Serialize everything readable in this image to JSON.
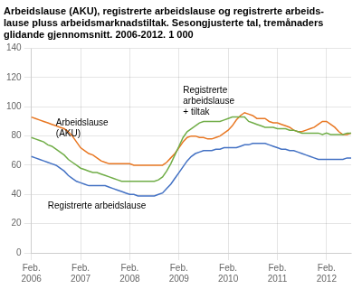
{
  "chart_data": {
    "type": "line",
    "title": "Arbeidslause (AKU), registrerte arbeidslause og registrerte arbeids-\nlause pluss arbeidsmarknadstiltak. Sesongjusterte tal, tremånaders\nglidande gjennomsnitt. 2006-2012. 1 000",
    "categories": [
      "Feb.\n2006",
      null,
      null,
      null,
      null,
      null,
      null,
      null,
      null,
      null,
      null,
      null,
      "Feb.\n2007",
      null,
      null,
      null,
      null,
      null,
      null,
      null,
      null,
      null,
      null,
      null,
      "Feb.\n2008",
      null,
      null,
      null,
      null,
      null,
      null,
      null,
      null,
      null,
      null,
      null,
      "Feb.\n2009",
      null,
      null,
      null,
      null,
      null,
      null,
      null,
      null,
      null,
      null,
      null,
      "Feb.\n2010",
      null,
      null,
      null,
      null,
      null,
      null,
      null,
      null,
      null,
      null,
      null,
      "Feb.\n2011",
      null,
      null,
      null,
      null,
      null,
      null,
      null,
      null,
      null,
      null,
      null,
      "Feb.\n2012",
      null,
      null,
      null,
      null,
      null,
      null
    ],
    "series": [
      {
        "color": "#70ad47",
        "values": [
          79,
          78,
          77,
          76,
          74,
          73,
          71,
          69,
          67,
          64,
          62,
          60,
          58,
          57,
          56,
          55,
          55,
          54,
          53,
          52,
          51,
          50,
          49,
          49,
          49,
          49,
          49,
          49,
          49,
          49,
          49,
          50,
          52,
          56,
          61,
          67,
          73,
          79,
          83,
          85,
          87,
          89,
          90,
          90,
          90,
          90,
          90,
          91,
          92,
          93,
          93,
          93,
          93,
          90,
          89,
          88,
          87,
          86,
          86,
          86,
          85,
          85,
          85,
          84,
          84,
          83,
          82,
          82,
          82,
          82,
          82,
          81,
          82,
          81,
          81,
          81,
          81,
          82,
          82
        ]
      },
      {
        "color": "#e87722",
        "values": [
          93,
          92,
          91,
          90,
          89,
          88,
          87,
          86,
          85,
          83,
          80,
          76,
          72,
          70,
          68,
          67,
          65,
          63,
          62,
          61,
          61,
          61,
          61,
          61,
          61,
          60,
          60,
          60,
          60,
          60,
          60,
          60,
          60,
          62,
          65,
          68,
          72,
          76,
          79,
          80,
          80,
          79,
          79,
          78,
          78,
          79,
          80,
          82,
          84,
          87,
          91,
          94,
          96,
          95,
          94,
          92,
          92,
          92,
          90,
          89,
          89,
          88,
          87,
          86,
          84,
          83,
          83,
          84,
          85,
          86,
          88,
          90,
          90,
          88,
          86,
          83,
          81,
          81,
          82
        ]
      },
      {
        "color": "#4472c4",
        "values": [
          66,
          65,
          64,
          63,
          62,
          61,
          60,
          58,
          56,
          53,
          51,
          49,
          48,
          47,
          46,
          46,
          46,
          46,
          46,
          45,
          44,
          43,
          42,
          41,
          40,
          40,
          39,
          39,
          39,
          39,
          39,
          40,
          41,
          44,
          47,
          51,
          55,
          59,
          63,
          66,
          68,
          69,
          70,
          70,
          70,
          71,
          71,
          72,
          72,
          72,
          72,
          73,
          74,
          74,
          75,
          75,
          75,
          75,
          74,
          73,
          72,
          71,
          71,
          70,
          70,
          69,
          68,
          67,
          66,
          65,
          64,
          64,
          64,
          64,
          64,
          64,
          64,
          65,
          65
        ]
      }
    ],
    "ylim": [
      0,
      140
    ],
    "yticks": [
      0,
      20,
      40,
      60,
      80,
      100,
      120,
      140
    ],
    "grid": true,
    "annotations": [
      {
        "text": "Arbeidslause\n(AKU)",
        "x": 6,
        "y": 85
      },
      {
        "text": "Registrerte arbeidslause",
        "x": 4,
        "y": 32
      },
      {
        "text": "Registrerte\narbeidslause\n+ tiltak",
        "x": 37,
        "y": 104
      }
    ]
  }
}
